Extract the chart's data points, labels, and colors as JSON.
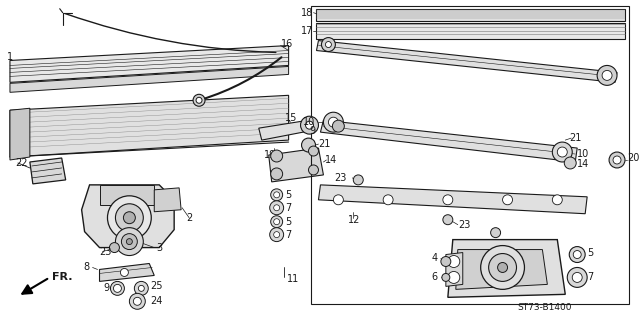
{
  "bg_color": "#ffffff",
  "lc": "#1a1a1a",
  "diagram_code": "ST73-B1400",
  "fr_label": "FR.",
  "fs": 7.0
}
